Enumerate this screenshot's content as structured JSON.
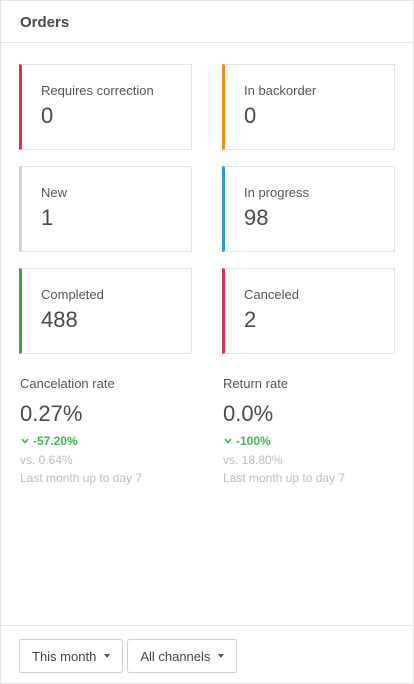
{
  "header": {
    "title": "Orders"
  },
  "status_cards": [
    {
      "label": "Requires correction",
      "value": "0",
      "color": "#d1394b"
    },
    {
      "label": "In backorder",
      "value": "0",
      "color": "#f38c1f"
    },
    {
      "label": "New",
      "value": "1",
      "color": "#d3d3d3"
    },
    {
      "label": "In progress",
      "value": "98",
      "color": "#2a9bd6"
    },
    {
      "label": "Completed",
      "value": "488",
      "color": "#3ea647"
    },
    {
      "label": "Canceled",
      "value": "2",
      "color": "#d1394b"
    }
  ],
  "rates": [
    {
      "label": "Cancelation rate",
      "value": "0.27%",
      "change": "-57.20%",
      "vs": "vs. 0.64%",
      "note": "Last month up to day 7"
    },
    {
      "label": "Return rate",
      "value": "0.0%",
      "change": "-100%",
      "vs": "vs. 18.80%",
      "note": "Last month up to day 7"
    }
  ],
  "footer": {
    "period_label": "This month",
    "channel_label": "All channels"
  },
  "colors": {
    "positive_change": "#3dba4e",
    "muted_text": "#bdbdbd"
  },
  "icons": {
    "change_arrow": "chevron-down-icon",
    "dropdown_caret": "caret-down-icon"
  }
}
